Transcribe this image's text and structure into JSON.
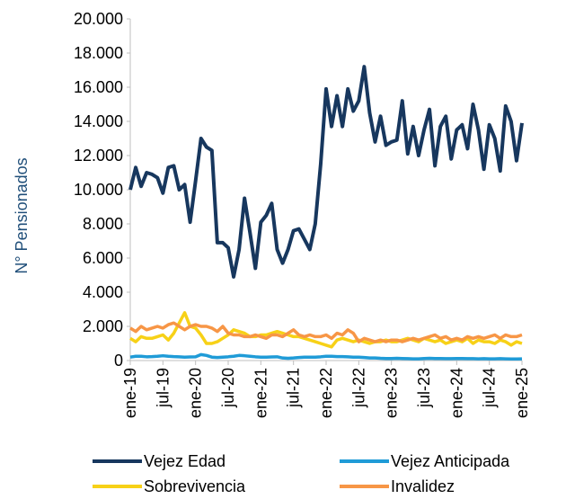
{
  "chart_data": {
    "type": "line",
    "y_label": "N° Pensionados",
    "categories": [
      "ene-19",
      null,
      null,
      null,
      null,
      null,
      "jul-19",
      null,
      null,
      null,
      null,
      null,
      "ene-20",
      null,
      null,
      null,
      null,
      null,
      "jul-20",
      null,
      null,
      null,
      null,
      null,
      "ene-21",
      null,
      null,
      null,
      null,
      null,
      "jul-21",
      null,
      null,
      null,
      null,
      null,
      "ene-22",
      null,
      null,
      null,
      null,
      null,
      "jul-22",
      null,
      null,
      null,
      null,
      null,
      "ene-23",
      null,
      null,
      null,
      null,
      null,
      "jul-23",
      null,
      null,
      null,
      null,
      null,
      "ene-24",
      null,
      null,
      null,
      null,
      null,
      "jul-24",
      null,
      null,
      null,
      null,
      null,
      "ene-25"
    ],
    "series": [
      {
        "name": "Vejez Edad",
        "color": "#17375e",
        "values": [
          10000,
          11300,
          10200,
          11000,
          10900,
          10700,
          9800,
          11300,
          11400,
          10000,
          10300,
          8100,
          10500,
          13000,
          12500,
          12300,
          6900,
          6900,
          6600,
          4900,
          6500,
          9500,
          7500,
          5400,
          8100,
          8500,
          9200,
          6500,
          5700,
          6500,
          7600,
          7700,
          7100,
          6500,
          8000,
          11500,
          15900,
          13700,
          15500,
          13700,
          15900,
          14600,
          15200,
          17200,
          14500,
          12800,
          14300,
          12600,
          12800,
          12900,
          15200,
          12100,
          13700,
          12000,
          13500,
          14700,
          11400,
          13700,
          14300,
          11800,
          13500,
          13800,
          12400,
          15000,
          13500,
          11200,
          13800,
          13000,
          11100,
          14900,
          14000,
          11700,
          13900
        ]
      },
      {
        "name": "Vejez Anticipada",
        "color": "#1f9bd7",
        "values": [
          200,
          250,
          250,
          220,
          230,
          250,
          280,
          250,
          230,
          220,
          200,
          210,
          220,
          350,
          300,
          200,
          180,
          200,
          220,
          250,
          300,
          280,
          250,
          220,
          200,
          200,
          210,
          220,
          150,
          130,
          150,
          180,
          200,
          200,
          200,
          220,
          250,
          250,
          230,
          230,
          220,
          200,
          200,
          180,
          150,
          150,
          130,
          120,
          120,
          130,
          120,
          110,
          100,
          100,
          120,
          130,
          120,
          120,
          110,
          110,
          120,
          120,
          110,
          110,
          100,
          110,
          100,
          100,
          110,
          100,
          90,
          90,
          100
        ]
      },
      {
        "name": "Sobrevivencia",
        "color": "#f7d117",
        "values": [
          1300,
          1100,
          1400,
          1300,
          1300,
          1400,
          1500,
          1200,
          1600,
          2200,
          2800,
          2000,
          1900,
          1500,
          1000,
          1000,
          1100,
          1300,
          1500,
          1800,
          1700,
          1600,
          1400,
          1400,
          1500,
          1500,
          1600,
          1700,
          1600,
          1500,
          1400,
          1400,
          1300,
          1200,
          1100,
          1000,
          900,
          800,
          1200,
          1300,
          1200,
          1100,
          1200,
          1100,
          1000,
          1100,
          1100,
          1200,
          1100,
          1100,
          1200,
          1300,
          1200,
          1100,
          1300,
          1200,
          1100,
          1200,
          1000,
          1100,
          1200,
          1100,
          1300,
          1000,
          1200,
          1100,
          1100,
          1000,
          1200,
          1100,
          900,
          1100,
          1000
        ]
      },
      {
        "name": "Invalidez",
        "color": "#f79646",
        "values": [
          1900,
          1700,
          2000,
          1800,
          1900,
          2000,
          1900,
          2100,
          2200,
          2000,
          1800,
          2000,
          2100,
          2000,
          2000,
          1900,
          1700,
          2000,
          1600,
          1500,
          1500,
          1400,
          1400,
          1500,
          1400,
          1300,
          1500,
          1500,
          1400,
          1600,
          1800,
          1500,
          1400,
          1500,
          1400,
          1400,
          1500,
          1300,
          1600,
          1500,
          1800,
          1600,
          1100,
          1300,
          1200,
          1100,
          1200,
          1100,
          1200,
          1200,
          1100,
          1200,
          1300,
          1200,
          1300,
          1400,
          1500,
          1300,
          1400,
          1200,
          1300,
          1200,
          1400,
          1300,
          1400,
          1300,
          1400,
          1500,
          1300,
          1500,
          1400,
          1400,
          1500
        ]
      }
    ],
    "ylim": [
      0,
      20000
    ],
    "yticks": [
      0,
      {
        "value": 2000,
        "label": "2.000"
      },
      {
        "value": 4000,
        "label": "4.000"
      },
      {
        "value": 6000,
        "label": "6.000"
      },
      {
        "value": 8000,
        "label": "8.000"
      },
      {
        "value": 10000,
        "label": "10.000"
      },
      {
        "value": 12000,
        "label": "12.000"
      },
      {
        "value": 14000,
        "label": "14.000"
      },
      {
        "value": 16000,
        "label": "16.000"
      },
      {
        "value": 18000,
        "label": "18.000"
      },
      {
        "value": 20000,
        "label": "20.000"
      }
    ],
    "grid": false,
    "legend": "bottom"
  }
}
